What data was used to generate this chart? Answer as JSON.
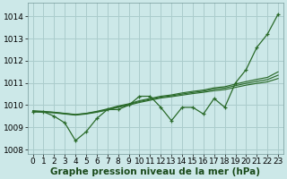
{
  "xlabel": "Graphe pression niveau de la mer (hPa)",
  "x": [
    0,
    1,
    2,
    3,
    4,
    5,
    6,
    7,
    8,
    9,
    10,
    11,
    12,
    13,
    14,
    15,
    16,
    17,
    18,
    19,
    20,
    21,
    22,
    23
  ],
  "line_zigzag": [
    1009.7,
    1009.7,
    1009.5,
    1009.2,
    1008.4,
    1008.8,
    1009.4,
    1009.8,
    1009.8,
    1010.0,
    1010.4,
    1010.4,
    1009.9,
    1009.3,
    1009.9,
    1009.9,
    1009.6,
    1010.3,
    1009.9,
    1011.0,
    1011.6,
    1012.6,
    1013.2,
    1014.1
  ],
  "line_trend1": [
    1009.7,
    1009.68,
    1009.65,
    1009.6,
    1009.55,
    1009.6,
    1009.68,
    1009.78,
    1009.9,
    1010.0,
    1010.12,
    1010.22,
    1010.32,
    1010.38,
    1010.45,
    1010.52,
    1010.58,
    1010.65,
    1010.7,
    1010.8,
    1010.9,
    1010.98,
    1011.05,
    1011.2
  ],
  "line_trend2": [
    1009.72,
    1009.7,
    1009.67,
    1009.62,
    1009.57,
    1009.62,
    1009.7,
    1009.8,
    1009.93,
    1010.03,
    1010.16,
    1010.26,
    1010.36,
    1010.42,
    1010.5,
    1010.57,
    1010.63,
    1010.72,
    1010.77,
    1010.88,
    1010.98,
    1011.07,
    1011.15,
    1011.35
  ],
  "line_trend3": [
    1009.75,
    1009.72,
    1009.68,
    1009.63,
    1009.58,
    1009.63,
    1009.72,
    1009.83,
    1009.96,
    1010.06,
    1010.2,
    1010.3,
    1010.4,
    1010.46,
    1010.55,
    1010.62,
    1010.68,
    1010.78,
    1010.83,
    1010.95,
    1011.06,
    1011.16,
    1011.25,
    1011.5
  ],
  "bg_color": "#cce8e8",
  "grid_color": "#aacccc",
  "line_color": "#2a6a2a",
  "ylim": [
    1007.8,
    1014.6
  ],
  "xlim": [
    -0.5,
    23.5
  ],
  "tick_fontsize": 6.5,
  "label_fontsize": 7.5,
  "xticks": [
    0,
    1,
    2,
    3,
    4,
    5,
    6,
    7,
    8,
    9,
    10,
    11,
    12,
    13,
    14,
    15,
    16,
    17,
    18,
    19,
    20,
    21,
    22,
    23
  ],
  "yticks": [
    1008,
    1009,
    1010,
    1011,
    1012,
    1013,
    1014
  ]
}
